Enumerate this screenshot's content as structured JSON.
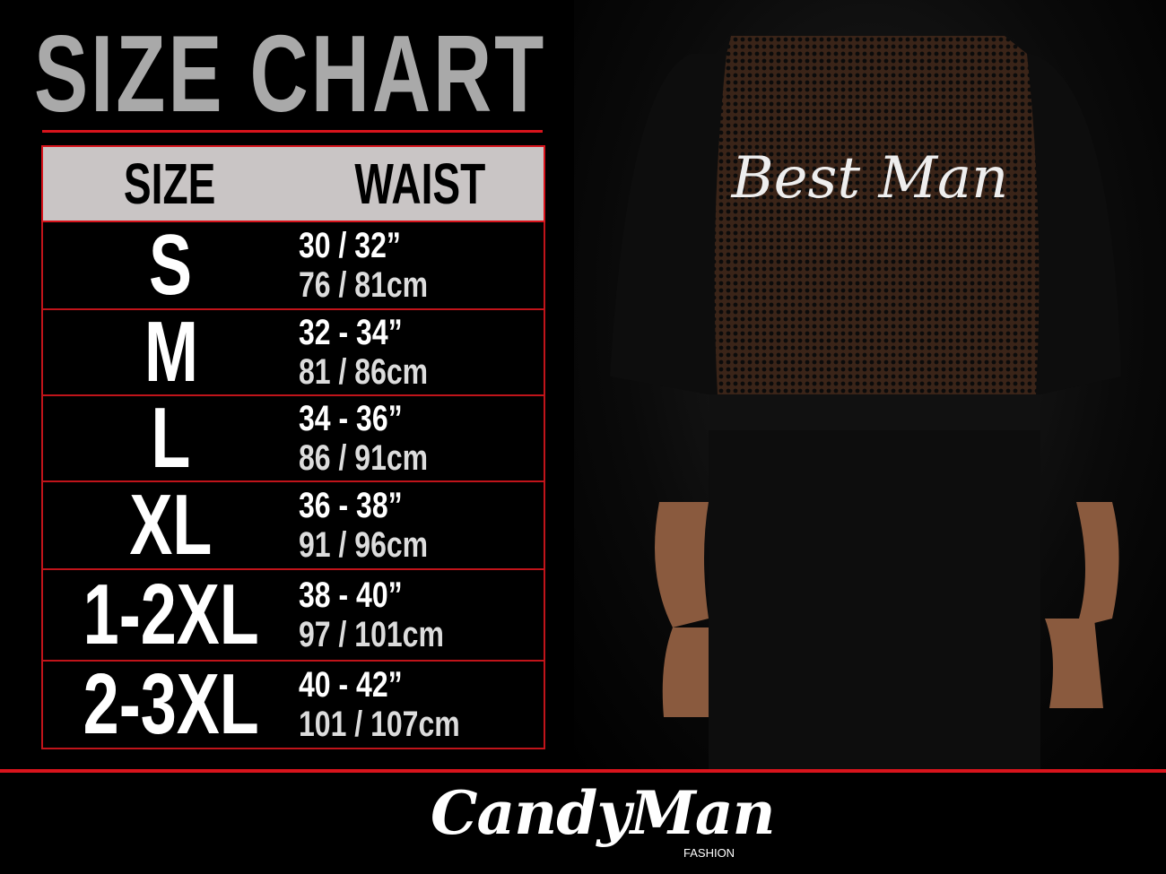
{
  "title": "SIZE CHART",
  "table": {
    "headers": [
      "SIZE",
      "WAIST"
    ],
    "rows": [
      {
        "size": "S",
        "inches": "30 / 32”",
        "cm": "76 / 81cm"
      },
      {
        "size": "M",
        "inches": "32 - 34”",
        "cm": "81 / 86cm"
      },
      {
        "size": "L",
        "inches": "34 - 36”",
        "cm": "86 / 91cm"
      },
      {
        "size": "XL",
        "inches": "36 - 38”",
        "cm": "91 / 96cm"
      },
      {
        "size": "1-2XL",
        "inches": "38 - 40”",
        "cm": "97 / 101cm"
      },
      {
        "size": "2-3XL",
        "inches": "40 - 42”",
        "cm": "101 / 107cm"
      }
    ]
  },
  "garment_print": "Best Man",
  "brand": {
    "name": "CandyMan",
    "sub": "FASHION"
  },
  "colors": {
    "accent": "#d8141c",
    "header_bg": "#c9c5c5",
    "title": "#a9a9a9"
  }
}
